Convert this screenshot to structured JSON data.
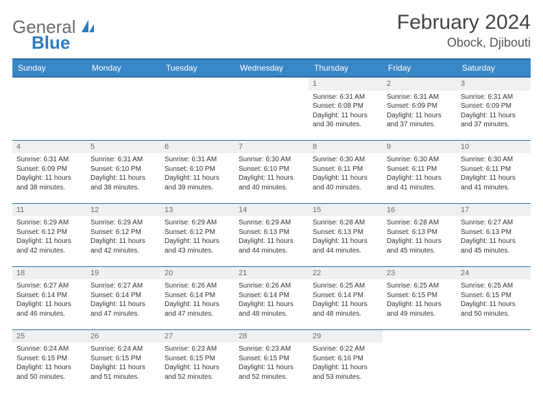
{
  "brand": {
    "word1": "General",
    "word2": "Blue"
  },
  "title": "February 2024",
  "location": "Obock, Djibouti",
  "colors": {
    "header_bg": "#3a87c7",
    "header_border": "#2d6aa3",
    "daynum_bg": "#eef0f1",
    "text": "#333333",
    "logo_gray": "#6b6b6b",
    "logo_blue": "#2d7bc0"
  },
  "dayNames": [
    "Sunday",
    "Monday",
    "Tuesday",
    "Wednesday",
    "Thursday",
    "Friday",
    "Saturday"
  ],
  "weeks": [
    [
      null,
      null,
      null,
      null,
      {
        "n": "1",
        "sr": "Sunrise: 6:31 AM",
        "ss": "Sunset: 6:08 PM",
        "dl": "Daylight: 11 hours and 36 minutes."
      },
      {
        "n": "2",
        "sr": "Sunrise: 6:31 AM",
        "ss": "Sunset: 6:09 PM",
        "dl": "Daylight: 11 hours and 37 minutes."
      },
      {
        "n": "3",
        "sr": "Sunrise: 6:31 AM",
        "ss": "Sunset: 6:09 PM",
        "dl": "Daylight: 11 hours and 37 minutes."
      }
    ],
    [
      {
        "n": "4",
        "sr": "Sunrise: 6:31 AM",
        "ss": "Sunset: 6:09 PM",
        "dl": "Daylight: 11 hours and 38 minutes."
      },
      {
        "n": "5",
        "sr": "Sunrise: 6:31 AM",
        "ss": "Sunset: 6:10 PM",
        "dl": "Daylight: 11 hours and 38 minutes."
      },
      {
        "n": "6",
        "sr": "Sunrise: 6:31 AM",
        "ss": "Sunset: 6:10 PM",
        "dl": "Daylight: 11 hours and 39 minutes."
      },
      {
        "n": "7",
        "sr": "Sunrise: 6:30 AM",
        "ss": "Sunset: 6:10 PM",
        "dl": "Daylight: 11 hours and 40 minutes."
      },
      {
        "n": "8",
        "sr": "Sunrise: 6:30 AM",
        "ss": "Sunset: 6:11 PM",
        "dl": "Daylight: 11 hours and 40 minutes."
      },
      {
        "n": "9",
        "sr": "Sunrise: 6:30 AM",
        "ss": "Sunset: 6:11 PM",
        "dl": "Daylight: 11 hours and 41 minutes."
      },
      {
        "n": "10",
        "sr": "Sunrise: 6:30 AM",
        "ss": "Sunset: 6:11 PM",
        "dl": "Daylight: 11 hours and 41 minutes."
      }
    ],
    [
      {
        "n": "11",
        "sr": "Sunrise: 6:29 AM",
        "ss": "Sunset: 6:12 PM",
        "dl": "Daylight: 11 hours and 42 minutes."
      },
      {
        "n": "12",
        "sr": "Sunrise: 6:29 AM",
        "ss": "Sunset: 6:12 PM",
        "dl": "Daylight: 11 hours and 42 minutes."
      },
      {
        "n": "13",
        "sr": "Sunrise: 6:29 AM",
        "ss": "Sunset: 6:12 PM",
        "dl": "Daylight: 11 hours and 43 minutes."
      },
      {
        "n": "14",
        "sr": "Sunrise: 6:29 AM",
        "ss": "Sunset: 6:13 PM",
        "dl": "Daylight: 11 hours and 44 minutes."
      },
      {
        "n": "15",
        "sr": "Sunrise: 6:28 AM",
        "ss": "Sunset: 6:13 PM",
        "dl": "Daylight: 11 hours and 44 minutes."
      },
      {
        "n": "16",
        "sr": "Sunrise: 6:28 AM",
        "ss": "Sunset: 6:13 PM",
        "dl": "Daylight: 11 hours and 45 minutes."
      },
      {
        "n": "17",
        "sr": "Sunrise: 6:27 AM",
        "ss": "Sunset: 6:13 PM",
        "dl": "Daylight: 11 hours and 45 minutes."
      }
    ],
    [
      {
        "n": "18",
        "sr": "Sunrise: 6:27 AM",
        "ss": "Sunset: 6:14 PM",
        "dl": "Daylight: 11 hours and 46 minutes."
      },
      {
        "n": "19",
        "sr": "Sunrise: 6:27 AM",
        "ss": "Sunset: 6:14 PM",
        "dl": "Daylight: 11 hours and 47 minutes."
      },
      {
        "n": "20",
        "sr": "Sunrise: 6:26 AM",
        "ss": "Sunset: 6:14 PM",
        "dl": "Daylight: 11 hours and 47 minutes."
      },
      {
        "n": "21",
        "sr": "Sunrise: 6:26 AM",
        "ss": "Sunset: 6:14 PM",
        "dl": "Daylight: 11 hours and 48 minutes."
      },
      {
        "n": "22",
        "sr": "Sunrise: 6:25 AM",
        "ss": "Sunset: 6:14 PM",
        "dl": "Daylight: 11 hours and 48 minutes."
      },
      {
        "n": "23",
        "sr": "Sunrise: 6:25 AM",
        "ss": "Sunset: 6:15 PM",
        "dl": "Daylight: 11 hours and 49 minutes."
      },
      {
        "n": "24",
        "sr": "Sunrise: 6:25 AM",
        "ss": "Sunset: 6:15 PM",
        "dl": "Daylight: 11 hours and 50 minutes."
      }
    ],
    [
      {
        "n": "25",
        "sr": "Sunrise: 6:24 AM",
        "ss": "Sunset: 6:15 PM",
        "dl": "Daylight: 11 hours and 50 minutes."
      },
      {
        "n": "26",
        "sr": "Sunrise: 6:24 AM",
        "ss": "Sunset: 6:15 PM",
        "dl": "Daylight: 11 hours and 51 minutes."
      },
      {
        "n": "27",
        "sr": "Sunrise: 6:23 AM",
        "ss": "Sunset: 6:15 PM",
        "dl": "Daylight: 11 hours and 52 minutes."
      },
      {
        "n": "28",
        "sr": "Sunrise: 6:23 AM",
        "ss": "Sunset: 6:15 PM",
        "dl": "Daylight: 11 hours and 52 minutes."
      },
      {
        "n": "29",
        "sr": "Sunrise: 6:22 AM",
        "ss": "Sunset: 6:16 PM",
        "dl": "Daylight: 11 hours and 53 minutes."
      },
      null,
      null
    ]
  ]
}
